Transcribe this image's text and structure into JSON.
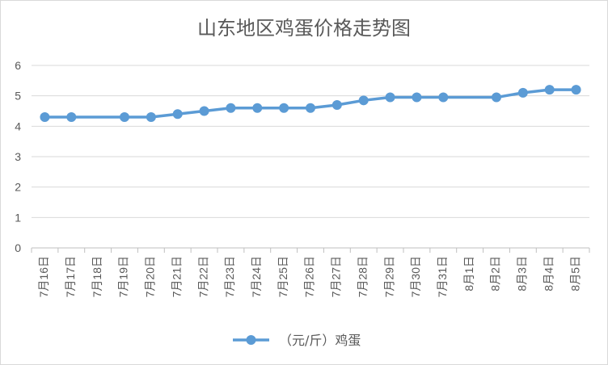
{
  "chart_data": {
    "type": "line",
    "title": "山东地区鸡蛋价格走势图",
    "xlabel": "",
    "ylabel": "",
    "categories": [
      "7月16日",
      "7月17日",
      "7月18日",
      "7月19日",
      "7月20日",
      "7月21日",
      "7月22日",
      "7月23日",
      "7月24日",
      "7月25日",
      "7月26日",
      "7月27日",
      "7月28日",
      "7月29日",
      "7月30日",
      "7月31日",
      "8月1日",
      "8月2日",
      "8月3日",
      "8月4日",
      "8月5日"
    ],
    "series": [
      {
        "name": "（元/斤）鸡蛋",
        "color": "#5b9bd5",
        "values": [
          4.3,
          4.3,
          null,
          4.3,
          4.3,
          4.4,
          4.5,
          4.6,
          4.6,
          4.6,
          4.6,
          4.7,
          4.85,
          4.95,
          4.95,
          4.95,
          null,
          4.95,
          5.1,
          5.2,
          5.2
        ]
      }
    ],
    "ylim": [
      0,
      6
    ],
    "yticks": [
      "0",
      "1",
      "2",
      "3",
      "4",
      "5",
      "6"
    ],
    "grid": true,
    "legend_position": "bottom"
  }
}
